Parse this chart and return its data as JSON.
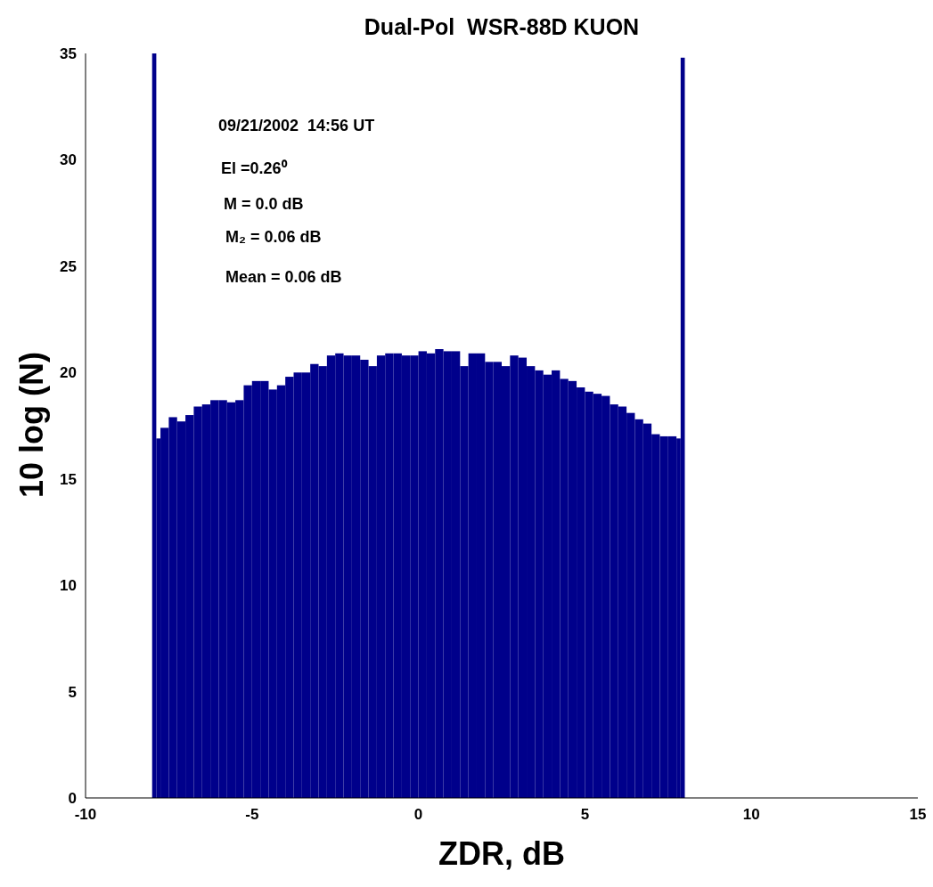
{
  "chart_data": {
    "type": "histogram",
    "title": "Dual-Pol  WSR-88D KUON",
    "xlabel": "ZDR, dB",
    "ylabel": "10 log (N)",
    "annotations": [
      "09/21/2002  14:56 UT",
      "El =0.26⁰",
      "M = 0.0 dB",
      "M₂ = 0.06 dB",
      "Mean = 0.06 dB"
    ],
    "color": "#00008b",
    "bins": [
      -8,
      -7.875,
      -7.75,
      -7.5,
      -7.25,
      -7,
      -6.75,
      -6.5,
      -6.25,
      -6,
      -5.75,
      -5.5,
      -5.25,
      -5,
      -4.75,
      -4.5,
      -4.25,
      -4,
      -3.75,
      -3.5,
      -3.25,
      -3,
      -2.75,
      -2.5,
      -2.25,
      -2,
      -1.75,
      -1.5,
      -1.25,
      -1,
      -0.75,
      -0.5,
      -0.25,
      0,
      0.25,
      0.5,
      0.75,
      1,
      1.25,
      1.5,
      1.75,
      2,
      2.25,
      2.5,
      2.75,
      3,
      3.25,
      3.5,
      3.75,
      4,
      4.25,
      4.5,
      4.75,
      5,
      5.25,
      5.5,
      5.75,
      6,
      6.25,
      6.5,
      6.75,
      7,
      7.25,
      7.5,
      7.75,
      7.875,
      8
    ],
    "values": [
      35,
      16.9,
      17.4,
      17.9,
      17.7,
      18.0,
      18.4,
      18.5,
      18.7,
      18.7,
      18.6,
      18.7,
      19.4,
      19.6,
      19.6,
      19.2,
      19.4,
      19.8,
      20.0,
      20.0,
      20.4,
      20.3,
      20.8,
      20.9,
      20.8,
      20.8,
      20.6,
      20.3,
      20.8,
      20.9,
      20.9,
      20.8,
      20.8,
      21.0,
      20.9,
      21.1,
      21.0,
      21.0,
      20.3,
      20.9,
      20.9,
      20.5,
      20.5,
      20.3,
      20.8,
      20.7,
      20.3,
      20.1,
      19.9,
      20.1,
      19.7,
      19.6,
      19.3,
      19.1,
      19.0,
      18.9,
      18.5,
      18.4,
      18.1,
      17.8,
      17.6,
      17.1,
      17.0,
      17.0,
      16.9,
      34.8
    ],
    "xlim": [
      -10,
      15
    ],
    "xticks": [
      -10,
      -5,
      0,
      5,
      10,
      15
    ],
    "ylim": [
      0,
      35
    ],
    "yticks": [
      0,
      5,
      10,
      15,
      20,
      25,
      30,
      35
    ],
    "grid": false
  }
}
